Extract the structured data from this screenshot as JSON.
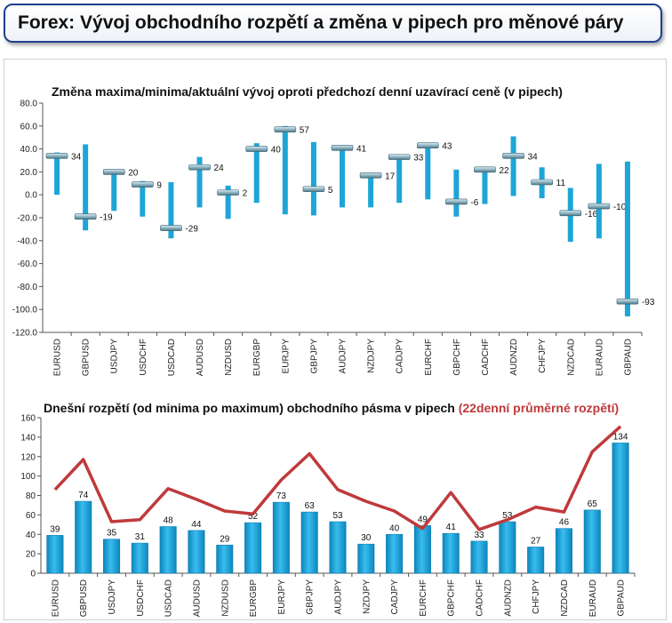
{
  "page": {
    "title": "Forex: Vývoj obchodního rozpětí a změna v pipech pro měnové páry"
  },
  "colors": {
    "bar": "#1ea5d8",
    "bar_dark": "#0d7fb3",
    "marker": "#7fa3b0",
    "avg_line": "#bf3a3c",
    "axis": "#555555"
  },
  "chart_data": [
    {
      "type": "range",
      "title": "Změna maxima/minima/aktuální vývoj oproti předchozí denní uzavírací ceně (v pipech)",
      "categories": [
        "EURUSD",
        "GBPUSD",
        "USDJPY",
        "USDCHF",
        "USDCAD",
        "AUDUSD",
        "NZDUSD",
        "EURGBP",
        "EURJPY",
        "GBPJPY",
        "AUDJPY",
        "NZDJPY",
        "CADJPY",
        "EURCHF",
        "GBPCHF",
        "CADCHF",
        "AUDNZD",
        "CHFJPY",
        "NZDCAD",
        "EURAUD",
        "GBPAUD"
      ],
      "high": [
        37,
        44,
        22,
        12,
        11,
        33,
        8,
        45,
        60,
        46,
        43,
        19,
        35,
        45,
        22,
        22,
        51,
        24,
        6,
        27,
        29
      ],
      "low": [
        0,
        -31,
        -14,
        -19,
        -38,
        -11,
        -21,
        -7,
        -17,
        -18,
        -11,
        -11,
        -7,
        -4,
        -19,
        -8,
        -1,
        -3,
        -41,
        -38,
        -106
      ],
      "current": [
        34,
        -19,
        20,
        9,
        -29,
        24,
        2,
        40,
        57,
        5,
        41,
        17,
        33,
        43,
        -6,
        22,
        34,
        11,
        -16,
        -10,
        -93
      ],
      "ylim": [
        -120,
        80
      ],
      "yticks": [
        -120,
        -100,
        -80,
        -60,
        -40,
        -20,
        0,
        20,
        40,
        60,
        80
      ],
      "ytick_labels": [
        "-120.0",
        "-100.0",
        "-80.0",
        "-60.0",
        "-40.0",
        "-20.0",
        "0.0",
        "20.0",
        "40.0",
        "60.0",
        "80.0"
      ]
    },
    {
      "type": "bar",
      "title": "Dnešní rozpětí (od minima po maximum) obchodního pásma v pipech",
      "title_accent": "(22denní průměrné rozpětí)",
      "categories": [
        "EURUSD",
        "GBPUSD",
        "USDJPY",
        "USDCHF",
        "USDCAD",
        "AUDUSD",
        "NZDUSD",
        "EURGBP",
        "EURJPY",
        "GBPJPY",
        "AUDJPY",
        "NZDJPY",
        "CADJPY",
        "EURCHF",
        "GBPCHF",
        "CADCHF",
        "AUDNZD",
        "CHFJPY",
        "NZDCAD",
        "EURAUD",
        "GBPAUD"
      ],
      "values": [
        39,
        74,
        35,
        31,
        48,
        44,
        29,
        52,
        73,
        63,
        53,
        30,
        40,
        49,
        41,
        33,
        53,
        27,
        46,
        65,
        134
      ],
      "series": [
        {
          "name": "22denní průměrné rozpětí",
          "values": [
            86,
            117,
            53,
            55,
            87,
            76,
            64,
            61,
            96,
            123,
            86,
            74,
            64,
            46,
            83,
            45,
            55,
            68,
            63,
            125,
            151
          ]
        }
      ],
      "ylim": [
        0,
        160
      ],
      "yticks": [
        0,
        20,
        40,
        60,
        80,
        100,
        120,
        140,
        160
      ],
      "ytick_labels": [
        "0",
        "20",
        "40",
        "60",
        "80",
        "100",
        "120",
        "140",
        "160"
      ]
    }
  ]
}
